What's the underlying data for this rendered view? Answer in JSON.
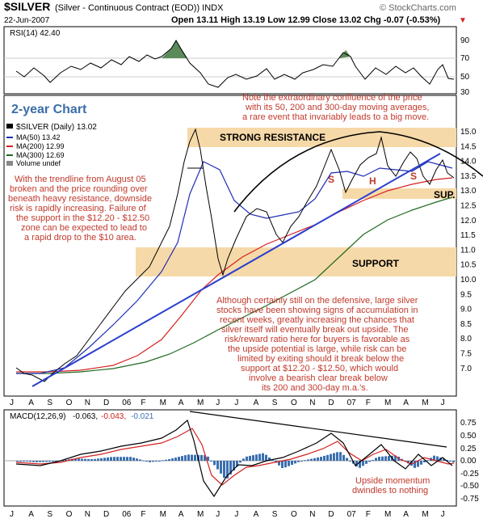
{
  "header": {
    "symbol": "$SILVER",
    "description": "(Silver - Continuous Contract (EOD)) INDX",
    "watermark": "© StockCharts.com",
    "date": "22-Jun-2007",
    "ohlc": "Open 13.11  High 13.19  Low 12.99  Close 13.02  Chg -0.07 (-0.53%)",
    "ohlc_arrow": "▼"
  },
  "rsi": {
    "label": "RSI(14) 42.40",
    "ticks": [
      "90",
      "70",
      "50",
      "30"
    ]
  },
  "price": {
    "chart_title": "2-year Chart",
    "legend": [
      {
        "label": "$SILVER (Daily) 13.02",
        "color": "#000000"
      },
      {
        "label": "MA(50) 13.42",
        "color": "#1f2fb5"
      },
      {
        "label": "MA(200) 12.99",
        "color": "#d42020"
      },
      {
        "label": "MA(300) 12.69",
        "color": "#1f6a1f"
      },
      {
        "label": "Volume undef",
        "color": "#888888"
      }
    ],
    "ticks": [
      "15.0",
      "14.5",
      "14.0",
      "13.5",
      "13.0",
      "12.5",
      "12.0",
      "11.5",
      "11.0",
      "10.5",
      "10.0",
      "9.5",
      "9.0",
      "8.5",
      "8.0",
      "7.5",
      "7.0"
    ],
    "zone_resistance": "STRONG RESISTANCE",
    "zone_support": "SUPPORT",
    "sup_label": "SUP.",
    "hs_labels": [
      "S",
      "H",
      "S"
    ],
    "annotation_top": [
      "Note the extraordinary confluence of the price",
      "with its 50, 200 and 300-day moving averages,",
      "a rare event that invariably leads to a big move."
    ],
    "annotation_left": [
      "With the trendline from August 05",
      "broken and the price rounding over",
      "beneath heavy resistance, downside",
      "risk is rapidly increasing. Failure of",
      "the support in the $12.20 - $12.50",
      "zone can be expected to lead to",
      "a rapid drop to the $10 area."
    ],
    "annotation_bottom": [
      "Although certainly still on the defensive, large silver",
      "stocks have been showing signs of accumulation in",
      "recent weeks, greatly increasing the chances that",
      "silver itself will eventually break out upside. The",
      "risk/reward ratio here for buyers is favorable as",
      "the upside potential is large, while risk can be",
      "limited by exiting should it break below the",
      "support at $12.20 - $12.50, which would",
      "involve a bearish clear break below",
      "its 200 and 300-day m.a.'s."
    ]
  },
  "months": [
    "J",
    "A",
    "S",
    "O",
    "N",
    "D",
    "06",
    "F",
    "M",
    "A",
    "M",
    "J",
    "J",
    "A",
    "S",
    "O",
    "N",
    "D",
    "07",
    "F",
    "M",
    "A",
    "M",
    "J"
  ],
  "macd": {
    "label": "MACD(12,26,9)",
    "v1": "-0.063,",
    "v2": "-0.043,",
    "v3": "-0.021",
    "ticks": [
      "0.75",
      "0.50",
      "0.25",
      "0.00",
      "-0.25",
      "-0.50",
      "-0.75"
    ],
    "annotation": [
      "Upside momentum",
      "dwindles to nothing"
    ]
  },
  "colors": {
    "price_bar": "#000000",
    "ma50": "#1f2fb5",
    "ma200": "#d42020",
    "ma300": "#1f6a1f",
    "zone_fill": "#f6d9a8",
    "annotation": "#c0392b",
    "trendline": "#2b3fcf",
    "macd_line": "#000000",
    "macd_signal": "#d42020",
    "macd_hist": "#3a6fb0"
  },
  "chart_data": {
    "type": "line",
    "title": "$SILVER (Silver - Continuous Contract (EOD)) INDX",
    "ylim": [
      6.5,
      15.3
    ],
    "x_labels": [
      "J",
      "A",
      "S",
      "O",
      "N",
      "D",
      "06",
      "F",
      "M",
      "A",
      "M",
      "J",
      "J",
      "A",
      "S",
      "O",
      "N",
      "D",
      "07",
      "F",
      "M",
      "A",
      "M",
      "J"
    ],
    "series": [
      {
        "name": "$SILVER (Daily) 13.02",
        "values": [
          7.1,
          7.0,
          6.9,
          7.3,
          7.7,
          8.5,
          9.0,
          9.7,
          10.3,
          12.3,
          14.5,
          10.5,
          11.0,
          12.3,
          11.5,
          11.4,
          12.5,
          13.8,
          13.2,
          13.5,
          14.3,
          13.3,
          13.7,
          13.02
        ]
      },
      {
        "name": "MA(50) 13.42",
        "values": [
          7.1,
          7.0,
          7.0,
          7.1,
          7.4,
          8.0,
          8.5,
          9.2,
          9.8,
          11.0,
          12.6,
          12.4,
          11.9,
          11.9,
          11.8,
          11.8,
          12.2,
          12.9,
          13.0,
          13.3,
          13.6,
          13.6,
          13.6,
          13.42
        ]
      },
      {
        "name": "MA(200) 12.99",
        "values": [
          7.0,
          7.0,
          7.0,
          7.0,
          7.05,
          7.2,
          7.4,
          7.7,
          8.0,
          8.5,
          9.1,
          9.6,
          10.0,
          10.4,
          10.8,
          11.0,
          11.3,
          11.6,
          11.9,
          12.2,
          12.5,
          12.7,
          12.9,
          12.99
        ]
      },
      {
        "name": "MA(300) 12.69",
        "values": [
          6.95,
          6.95,
          6.95,
          6.95,
          7.0,
          7.05,
          7.2,
          7.35,
          7.5,
          7.8,
          8.2,
          8.6,
          8.9,
          9.3,
          9.7,
          10.1,
          10.5,
          10.9,
          11.3,
          11.7,
          12.1,
          12.4,
          12.6,
          12.69
        ]
      }
    ],
    "rsi": {
      "label": "RSI(14) 42.40",
      "ylim": [
        30,
        90
      ],
      "values": [
        45,
        52,
        38,
        55,
        60,
        66,
        70,
        62,
        66,
        74,
        80,
        30,
        45,
        58,
        40,
        48,
        55,
        62,
        50,
        60,
        62,
        42,
        55,
        42.4
      ]
    },
    "macd": {
      "label": "MACD(12,26,9)",
      "ylim": [
        -0.75,
        0.75
      ],
      "values": [
        0.0,
        -0.05,
        -0.05,
        0.05,
        0.1,
        0.2,
        0.3,
        0.25,
        0.3,
        0.5,
        0.62,
        -0.55,
        -0.15,
        0.2,
        -0.15,
        -0.05,
        0.15,
        0.42,
        0.1,
        0.3,
        0.42,
        -0.1,
        0.15,
        -0.063
      ],
      "signal": [
        0.0,
        -0.03,
        -0.04,
        0.02,
        0.08,
        0.15,
        0.25,
        0.27,
        0.28,
        0.42,
        0.55,
        -0.3,
        -0.2,
        0.1,
        -0.05,
        -0.05,
        0.1,
        0.3,
        0.2,
        0.25,
        0.35,
        0.0,
        0.08,
        -0.043
      ]
    },
    "zones": [
      {
        "label": "STRONG RESISTANCE",
        "range": [
          14.3,
          15.1
        ]
      },
      {
        "label": "SUPPORT",
        "range": [
          9.6,
          10.5
        ]
      },
      {
        "label": "SUP.",
        "range": [
          12.2,
          12.5
        ]
      }
    ]
  }
}
